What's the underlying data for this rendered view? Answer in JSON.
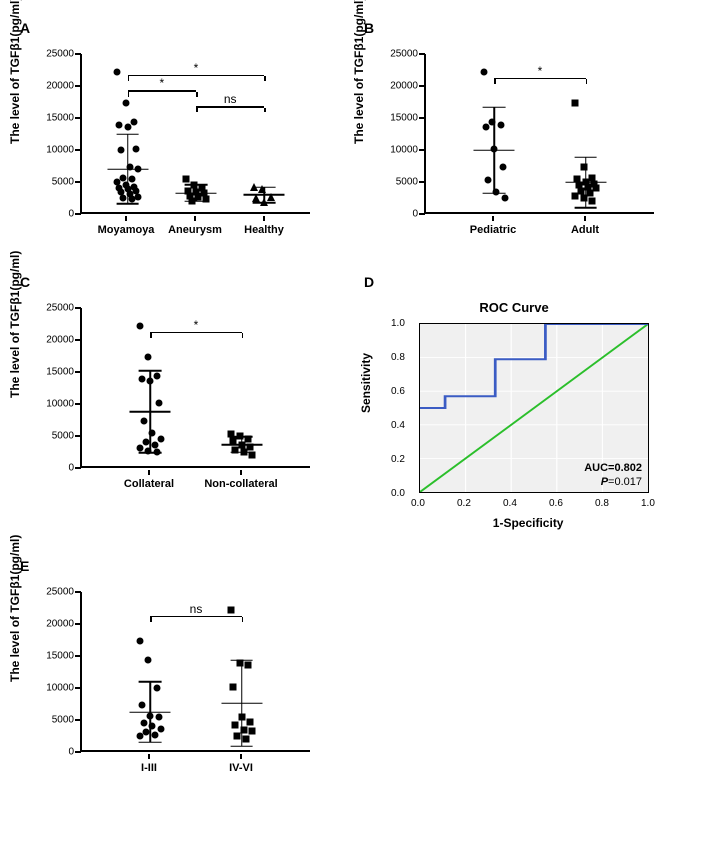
{
  "panels": {
    "A": {
      "label": "A",
      "ylabel": "The level of TGFβ1(pg/ml)",
      "ylim": [
        0,
        25000
      ],
      "ytick_step": 5000,
      "groups": [
        {
          "name": "Moyamoya",
          "x": 0.2,
          "marker": "circle",
          "mean": 6800,
          "sd": 5500,
          "points": [
            22200,
            17300,
            14200,
            13800,
            13500,
            10000,
            9800,
            7200,
            6800,
            5400,
            5200,
            4800,
            4200,
            4000,
            3800,
            3600,
            3400,
            3200,
            2800,
            2400,
            2200,
            2000
          ]
        },
        {
          "name": "Aneurysm",
          "x": 0.5,
          "marker": "square",
          "mean": 3000,
          "sd": 1300,
          "points": [
            5200,
            4200,
            3800,
            3400,
            3200,
            3000,
            2600,
            2400,
            2000,
            1800
          ]
        },
        {
          "name": "Healthy",
          "x": 0.8,
          "marker": "triangle",
          "mean": 2700,
          "sd": 1200,
          "points": [
            4000,
            3600,
            2400,
            2200,
            1600
          ]
        }
      ],
      "sig": [
        {
          "from": 0.2,
          "to": 0.5,
          "y": 19000,
          "label": "*"
        },
        {
          "from": 0.2,
          "to": 0.8,
          "y": 21500,
          "label": "*"
        },
        {
          "from": 0.5,
          "to": 0.8,
          "y": 16500,
          "label": "ns"
        }
      ]
    },
    "B": {
      "label": "B",
      "ylabel": "The level of TGFβ1(pg/ml)",
      "ylim": [
        0,
        25000
      ],
      "ytick_step": 5000,
      "groups": [
        {
          "name": "Pediatric",
          "x": 0.3,
          "marker": "circle",
          "mean": 9800,
          "sd": 6800,
          "points": [
            22200,
            14200,
            13800,
            13500,
            10000,
            7200,
            5000,
            3200,
            2200
          ]
        },
        {
          "name": "Adult",
          "x": 0.7,
          "marker": "square",
          "mean": 4700,
          "sd": 4000,
          "points": [
            17300,
            7200,
            5400,
            5200,
            4800,
            4400,
            4200,
            4000,
            3800,
            3400,
            3000,
            2600,
            2200,
            1800
          ]
        }
      ],
      "sig": [
        {
          "from": 0.3,
          "to": 0.7,
          "y": 21000,
          "label": "*"
        }
      ]
    },
    "C": {
      "label": "C",
      "ylabel": "The level of TGFβ1(pg/ml)",
      "ylim": [
        0,
        25000
      ],
      "ytick_step": 5000,
      "groups": [
        {
          "name": "Collateral",
          "x": 0.3,
          "marker": "circle",
          "mean": 8600,
          "sd": 6500,
          "points": [
            22200,
            17300,
            14200,
            13800,
            13500,
            10000,
            7200,
            5200,
            4200,
            3800,
            3400,
            2800,
            2400,
            2200
          ]
        },
        {
          "name": "Non-collateral",
          "x": 0.7,
          "marker": "square",
          "mean": 3400,
          "sd": 1200,
          "points": [
            5000,
            4800,
            4200,
            4000,
            3400,
            3000,
            2600,
            2200,
            1800
          ]
        }
      ],
      "sig": [
        {
          "from": 0.3,
          "to": 0.7,
          "y": 21000,
          "label": "*"
        }
      ]
    },
    "D": {
      "label": "D",
      "title": "ROC Curve",
      "xlabel": "1-Specificity",
      "ylabel": "Sensitivity",
      "xlim": [
        0,
        1
      ],
      "ylim": [
        0,
        1
      ],
      "tick_step": 0.2,
      "roc_points": [
        [
          0,
          0.5
        ],
        [
          0.11,
          0.5
        ],
        [
          0.11,
          0.57
        ],
        [
          0.33,
          0.57
        ],
        [
          0.33,
          0.79
        ],
        [
          0.55,
          0.79
        ],
        [
          0.55,
          1.0
        ],
        [
          1.0,
          1.0
        ]
      ],
      "roc_color": "#3b5cc4",
      "diag_color": "#2bbf2b",
      "bg_color": "#f0f0f0",
      "auc_text": "AUC=0.802",
      "p_text": "P=0.017"
    },
    "E": {
      "label": "E",
      "ylabel": "The level of TGFβ1(pg/ml)",
      "ylim": [
        0,
        25000
      ],
      "ytick_step": 5000,
      "groups": [
        {
          "name": "I-III",
          "x": 0.3,
          "marker": "circle",
          "mean": 6000,
          "sd": 4800,
          "points": [
            17300,
            14200,
            9800,
            7200,
            5400,
            5200,
            4200,
            3800,
            3400,
            2800,
            2400,
            2200
          ]
        },
        {
          "name": "IV-VI",
          "x": 0.7,
          "marker": "square",
          "mean": 7400,
          "sd": 6800,
          "points": [
            22200,
            13800,
            13500,
            10000,
            5200,
            4400,
            4000,
            3200,
            3000,
            2200,
            1800
          ]
        }
      ],
      "sig": [
        {
          "from": 0.3,
          "to": 0.7,
          "y": 21000,
          "label": "ns"
        }
      ]
    }
  },
  "colors": {
    "axis": "#000000",
    "marker": "#000000"
  },
  "fonts": {
    "label_pt": 12,
    "tick_pt": 10,
    "panel_label_pt": 14
  }
}
